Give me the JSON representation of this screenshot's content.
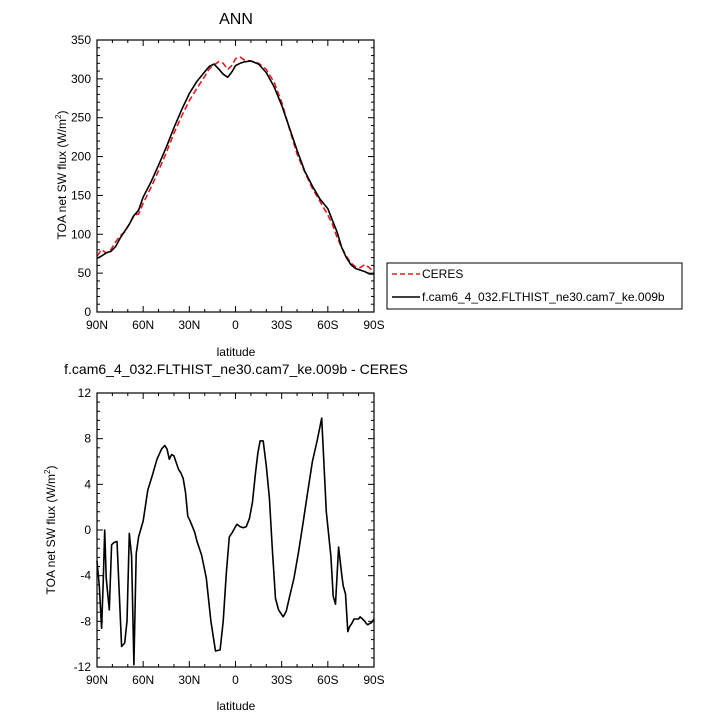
{
  "chart_data": [
    {
      "type": "line",
      "title": "ANN",
      "xlabel": "latitude",
      "ylabel": "TOA net SW flux (W/m",
      "ylabel_sup": "2",
      "ylabel_close": ")",
      "xlim": [
        90,
        -90
      ],
      "ylim": [
        0,
        350
      ],
      "xticks": [
        90,
        60,
        30,
        0,
        -30,
        -60,
        -90
      ],
      "xtick_labels": [
        "90N",
        "60N",
        "30N",
        "0",
        "30S",
        "60S",
        "90S"
      ],
      "yticks": [
        0,
        50,
        100,
        150,
        200,
        250,
        300,
        350
      ],
      "ytick_labels": [
        "0",
        "50",
        "100",
        "150",
        "200",
        "250",
        "300",
        "350"
      ],
      "legend": {
        "placement": "right",
        "entries": [
          "CERES",
          "f.cam6_4_032.FLTHIST_ne30.cam7_ke.009b"
        ]
      },
      "series": [
        {
          "name": "CERES",
          "color": "#e8191c",
          "dash": "dashed",
          "x": [
            90,
            87,
            84,
            81,
            78,
            75,
            72,
            69,
            66,
            63,
            60,
            55,
            50,
            45,
            40,
            35,
            30,
            25,
            20,
            17,
            14,
            11,
            8,
            5,
            2,
            0,
            -3,
            -6,
            -10,
            -15,
            -20,
            -25,
            -30,
            -35,
            -40,
            -45,
            -50,
            -55,
            -60,
            -63,
            -66,
            -69,
            -72,
            -75,
            -78,
            -81,
            -84,
            -87,
            -90
          ],
          "y": [
            72,
            80,
            76,
            80,
            90,
            98,
            103,
            113,
            125,
            126,
            140,
            160,
            182,
            205,
            230,
            252,
            272,
            288,
            303,
            313,
            318,
            322,
            320,
            312,
            318,
            326,
            328,
            324,
            323,
            320,
            312,
            296,
            270,
            236,
            203,
            180,
            159,
            142,
            125,
            113,
            96,
            83,
            72,
            63,
            58,
            57,
            61,
            57,
            51
          ]
        },
        {
          "name": "f.cam6_4_032.FLTHIST_ne30.cam7_ke.009b",
          "color": "#000000",
          "dash": "solid",
          "x": [
            90,
            87,
            84,
            81,
            78,
            75,
            72,
            69,
            66,
            63,
            60,
            55,
            50,
            45,
            40,
            35,
            30,
            25,
            20,
            17,
            14,
            11,
            8,
            5,
            2,
            0,
            -3,
            -6,
            -10,
            -15,
            -20,
            -25,
            -30,
            -35,
            -40,
            -45,
            -50,
            -55,
            -60,
            -63,
            -66,
            -69,
            -72,
            -75,
            -78,
            -81,
            -84,
            -87,
            -90
          ],
          "y": [
            69,
            72,
            76,
            78,
            84,
            95,
            104,
            113,
            124,
            131,
            148,
            167,
            189,
            212,
            237,
            260,
            281,
            297,
            309,
            316,
            319,
            313,
            306,
            302,
            310,
            317,
            320,
            322,
            323,
            319,
            308,
            290,
            266,
            237,
            208,
            181,
            162,
            145,
            133,
            118,
            103,
            83,
            70,
            61,
            56,
            54,
            52,
            49,
            49
          ]
        }
      ]
    },
    {
      "type": "line",
      "title": "f.cam6_4_032.FLTHIST_ne30.cam7_ke.009b - CERES",
      "xlabel": "latitude",
      "ylabel": "TOA net SW flux (W/m",
      "ylabel_sup": "2",
      "ylabel_close": ")",
      "xlim": [
        90,
        -90
      ],
      "ylim": [
        -12,
        12
      ],
      "xticks": [
        90,
        60,
        30,
        0,
        -30,
        -60,
        -90
      ],
      "xtick_labels": [
        "90N",
        "60N",
        "30N",
        "0",
        "30S",
        "60S",
        "90S"
      ],
      "yticks": [
        -12,
        -8,
        -4,
        0,
        4,
        8,
        12
      ],
      "ytick_labels": [
        "-12",
        "-8",
        "-4",
        "0",
        "4",
        "8",
        "12"
      ],
      "series": [
        {
          "name": "f.cam6_4_032.FLTHIST_ne30.cam7_ke.009b - CERES",
          "color": "#000000",
          "dash": "solid",
          "x": [
            90,
            88.5,
            87,
            86,
            85,
            84,
            82,
            80.5,
            79,
            77,
            74,
            72,
            70.5,
            69,
            67.5,
            66,
            64.5,
            63,
            61.5,
            60,
            57,
            54,
            51,
            48,
            46,
            44.5,
            43,
            41.5,
            40,
            38,
            37,
            35.5,
            34,
            32.5,
            31,
            29.5,
            28,
            26.5,
            25,
            22,
            19,
            16,
            13,
            10,
            8,
            6,
            4,
            2,
            0,
            -1,
            -3,
            -5,
            -7,
            -9,
            -11,
            -13,
            -14.5,
            -16,
            -18,
            -20,
            -22,
            -24,
            -26,
            -28,
            -31,
            -33,
            -35,
            -38,
            -41,
            -44,
            -47,
            -50,
            -53,
            -56,
            -59,
            -62,
            -63.5,
            -65,
            -67,
            -69,
            -70,
            -71.5,
            -73,
            -74,
            -75.5,
            -77,
            -78.5,
            -80,
            -81,
            -82.5,
            -84,
            -85,
            -86,
            -87,
            -88.5,
            -90
          ],
          "y": [
            -2.7,
            -4.9,
            -8.6,
            -4.6,
            0.0,
            -4.2,
            -7.0,
            -1.3,
            -1.1,
            -1.0,
            -10.2,
            -9.9,
            -8.0,
            -0.3,
            -2.3,
            -11.8,
            -2.1,
            -0.6,
            0.1,
            0.8,
            3.5,
            4.8,
            6.2,
            7.1,
            7.4,
            7.1,
            6.2,
            6.6,
            6.5,
            5.7,
            5.3,
            5.0,
            4.5,
            3.3,
            1.2,
            0.8,
            0.3,
            -0.2,
            -1.0,
            -2.2,
            -4.2,
            -8.0,
            -10.6,
            -10.5,
            -8.0,
            -3.8,
            -0.6,
            -0.2,
            0.3,
            0.5,
            0.3,
            0.2,
            0.3,
            1.0,
            2.4,
            5.0,
            6.7,
            7.8,
            7.8,
            5.6,
            2.8,
            -1.8,
            -6.0,
            -7.0,
            -7.6,
            -7.1,
            -5.9,
            -4.2,
            -1.9,
            0.7,
            3.4,
            6.0,
            7.8,
            9.8,
            1.6,
            -2.3,
            -5.8,
            -6.5,
            -1.5,
            -3.9,
            -4.9,
            -5.6,
            -8.9,
            -8.5,
            -8.2,
            -7.8,
            -7.8,
            -7.8,
            -7.6,
            -7.8,
            -8.0,
            -8.2,
            -8.3,
            -8.2,
            -8.1,
            -7.8
          ]
        }
      ]
    }
  ]
}
